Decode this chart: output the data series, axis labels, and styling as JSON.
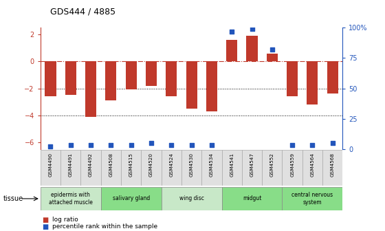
{
  "title": "GDS444 / 4885",
  "samples": [
    "GSM4490",
    "GSM4491",
    "GSM4492",
    "GSM4508",
    "GSM4515",
    "GSM4520",
    "GSM4524",
    "GSM4530",
    "GSM4534",
    "GSM4541",
    "GSM4547",
    "GSM4552",
    "GSM4559",
    "GSM4564",
    "GSM4568"
  ],
  "log_ratio": [
    -2.6,
    -2.5,
    -4.1,
    -2.9,
    -2.1,
    -1.8,
    -2.6,
    -3.5,
    -3.7,
    1.6,
    1.9,
    0.6,
    -2.6,
    -3.2,
    -2.4
  ],
  "percentile": [
    2,
    3,
    3,
    3,
    3,
    5,
    3,
    3,
    3,
    97,
    99,
    82,
    3,
    3,
    5
  ],
  "bar_color": "#c0392b",
  "dot_color": "#2255bb",
  "ylim_min": -6.5,
  "ylim_max": 2.5,
  "yticks_left": [
    -6,
    -4,
    -2,
    0,
    2
  ],
  "yticks_right": [
    0,
    25,
    50,
    75,
    100
  ],
  "right_y_labels": [
    "0",
    "25",
    "50",
    "75",
    "100%"
  ],
  "dotted_lines": [
    -2,
    -4
  ],
  "tissue_groups": [
    {
      "label": "epidermis with\nattached muscle",
      "start": 0,
      "end": 3,
      "color": "#c8e8c8"
    },
    {
      "label": "salivary gland",
      "start": 3,
      "end": 6,
      "color": "#88dd88"
    },
    {
      "label": "wing disc",
      "start": 6,
      "end": 9,
      "color": "#c8e8c8"
    },
    {
      "label": "midgut",
      "start": 9,
      "end": 12,
      "color": "#88dd88"
    },
    {
      "label": "central nervous\nsystem",
      "start": 12,
      "end": 15,
      "color": "#88dd88"
    }
  ],
  "legend_log_ratio": "log ratio",
  "legend_percentile": "percentile rank within the sample",
  "bar_width": 0.55
}
